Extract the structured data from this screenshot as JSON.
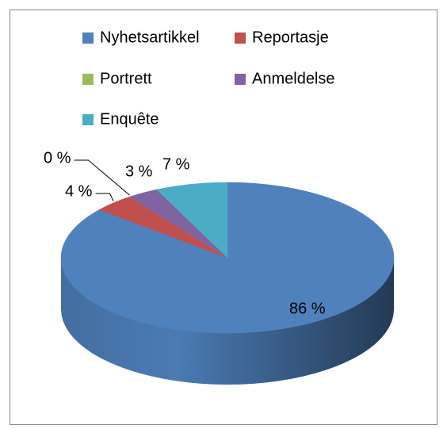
{
  "chart_data": {
    "type": "pie",
    "categories": [
      "Nyhetsartikkel",
      "Reportasje",
      "Portrett",
      "Anmeldelse",
      "Enquête"
    ],
    "values": [
      86,
      4,
      0,
      3,
      7
    ],
    "value_labels": [
      "86 %",
      "4 %",
      "0 %",
      "3 %",
      "7 %"
    ],
    "colors": [
      "#4f81bd",
      "#c0504d",
      "#9bbb59",
      "#8064a2",
      "#4bacc6"
    ],
    "legend": "top"
  }
}
